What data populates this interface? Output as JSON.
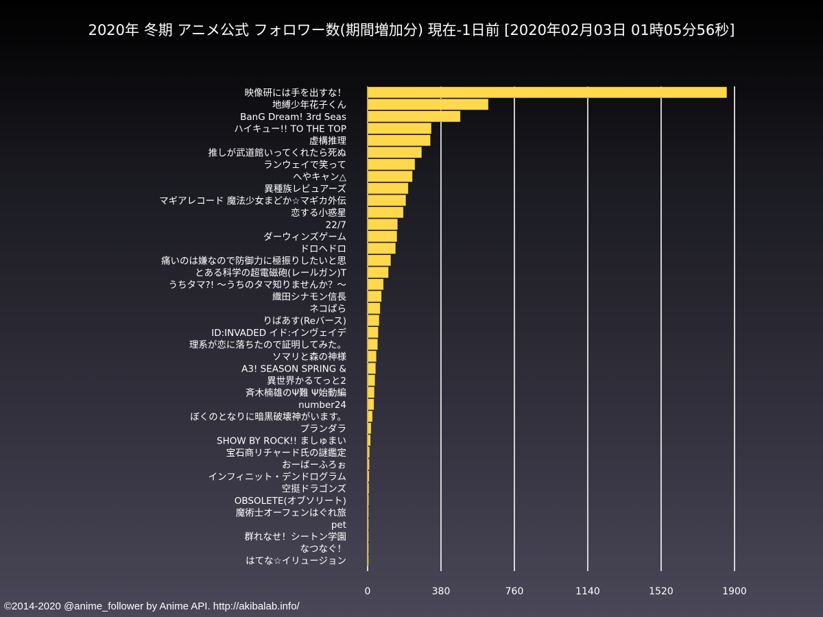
{
  "footer": "©2014-2020 @anime_follower by Anime API. http://akibalab.info/",
  "chart_data": {
    "type": "bar",
    "orientation": "horizontal",
    "title": "2020年 冬期 アニメ公式 フォロワー数(期間増加分) 現在-1日前 [2020年02月03日 01時05分56秒]",
    "xlabel": "",
    "ylabel": "",
    "xlim": [
      0,
      1900
    ],
    "xticks": [
      0,
      380,
      760,
      1140,
      1520,
      1900
    ],
    "grid": true,
    "bar_color": "#ffd84d",
    "categories": [
      "映像研には手を出すな！",
      "地縛少年花子くん",
      "BanG Dream! 3rd Seas",
      "ハイキュー!! TO THE TOP",
      "虚構推理",
      "推しが武道館いってくれたら死ぬ",
      "ランウェイで笑って",
      "へやキャン△",
      "異種族レビュアーズ",
      "マギアレコード 魔法少女まどか☆マギカ外伝",
      "恋する小惑星",
      "22/7",
      "ダーウィンズゲーム",
      "ドロヘドロ",
      "痛いのは嫌なので防御力に極振りしたいと思",
      "とある科学の超電磁砲(レールガン)T",
      "うちタマ?! ～うちのタマ知りませんか？～",
      "織田シナモン信長",
      "ネコぱら",
      "りばあす(Reバース)",
      "ID:INVADED イド:インヴェイデ",
      "理系が恋に落ちたので証明してみた。",
      "ソマリと森の神様",
      "A3! SEASON SPRING &",
      "異世界かるてっと2",
      "斉木楠雄のΨ難 Ψ始動編",
      "number24",
      "ぼくのとなりに暗黒破壊神がいます。",
      "プランダラ",
      "SHOW BY ROCK!! ましゅまい",
      "宝石商リチャード氏の謎鑑定",
      "おーばーふろぉ",
      "インフィニット・デンドログラム",
      "空挺ドラゴンズ",
      "OBSOLETE(オブソリート)",
      "魔術士オーフェンはぐれ旅",
      "pet",
      "群れなせ！シートン学園",
      "なつなぐ！",
      "はてな☆イリュージョン"
    ],
    "values": [
      1860,
      625,
      480,
      330,
      325,
      280,
      245,
      232,
      210,
      198,
      185,
      155,
      152,
      145,
      120,
      108,
      82,
      72,
      65,
      60,
      55,
      52,
      45,
      42,
      38,
      35,
      33,
      25,
      18,
      15,
      10,
      9,
      8,
      7,
      6,
      5,
      5,
      4,
      4,
      3
    ]
  }
}
